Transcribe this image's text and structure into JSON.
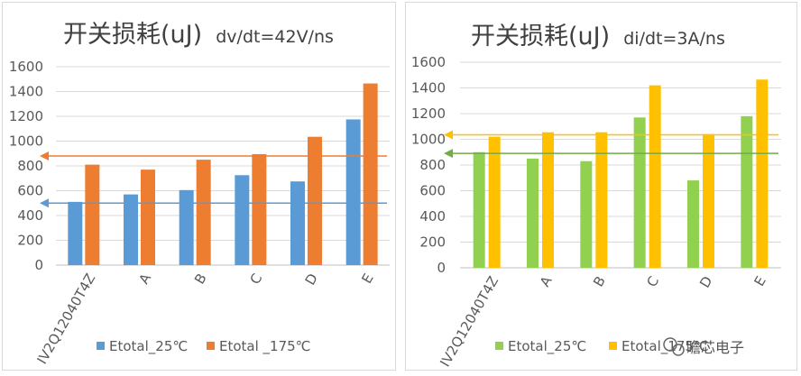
{
  "chart_data": [
    {
      "type": "bar",
      "title": "开关损耗(uJ)",
      "subtitle": "dv/dt=42V/ns",
      "categories": [
        "IV2Q12040T4Z",
        "A",
        "B",
        "C",
        "D",
        "E"
      ],
      "series": [
        {
          "name": "Etotal_25℃",
          "color": "#5b9bd5",
          "values": [
            510,
            570,
            605,
            725,
            675,
            1175
          ]
        },
        {
          "name": "Etotal _175℃",
          "color": "#ed7d31",
          "values": [
            810,
            770,
            850,
            895,
            1035,
            1465
          ]
        }
      ],
      "yticks": [
        "0",
        "200",
        "400",
        "600",
        "800",
        "1000",
        "1200",
        "1400",
        "1600"
      ],
      "ylim": [
        0,
        1600
      ],
      "reference_lines": [
        {
          "value": 500,
          "color": "#5b9bd5"
        },
        {
          "value": 880,
          "color": "#ed7d31"
        }
      ],
      "legend": "bottom"
    },
    {
      "type": "bar",
      "title": "开关损耗(uJ)",
      "subtitle": "di/dt=3A/ns",
      "categories": [
        "IV2Q12040T4Z",
        "A",
        "B",
        "C",
        "D",
        "E"
      ],
      "series": [
        {
          "name": "Etotal_25℃",
          "color": "#92d050",
          "values": [
            900,
            850,
            830,
            1170,
            680,
            1180
          ]
        },
        {
          "name": "Etotal_175℃",
          "color": "#ffc000",
          "values": [
            1020,
            1055,
            1055,
            1420,
            1040,
            1465
          ]
        }
      ],
      "yticks": [
        "0",
        "200",
        "400",
        "600",
        "800",
        "1000",
        "1200",
        "1400",
        "1600"
      ],
      "ylim": [
        0,
        1600
      ],
      "reference_lines": [
        {
          "value": 1035,
          "color": "#ffc000"
        },
        {
          "value": 890,
          "color": "#70ad47"
        }
      ],
      "legend": "bottom"
    }
  ],
  "watermark": {
    "text": "瞻芯电子"
  }
}
